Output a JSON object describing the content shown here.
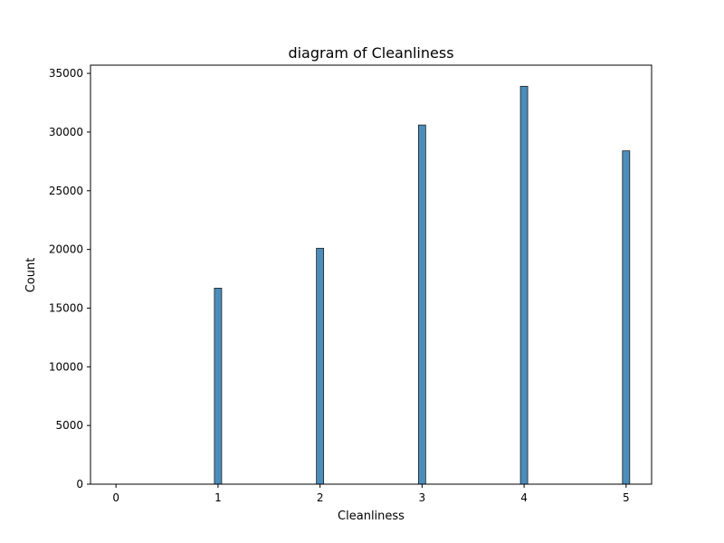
{
  "chart_data": {
    "type": "bar",
    "title": "diagram of Cleanliness",
    "xlabel": "Cleanliness",
    "ylabel": "Count",
    "x_ticks": [
      "0",
      "1",
      "2",
      "3",
      "4",
      "5"
    ],
    "y_ticks": [
      "0",
      "5000",
      "10000",
      "15000",
      "20000",
      "25000",
      "30000",
      "35000"
    ],
    "xlim": [
      -0.25,
      5.25
    ],
    "ylim": [
      0,
      35700
    ],
    "categories": [
      "0",
      "1",
      "2",
      "3",
      "4",
      "5"
    ],
    "values": [
      0,
      16700,
      20100,
      30600,
      33900,
      28400
    ],
    "bar_color": "#4c8dbb",
    "bar_edge_color": "#1f1f1f",
    "grid": false,
    "legend": "none"
  }
}
